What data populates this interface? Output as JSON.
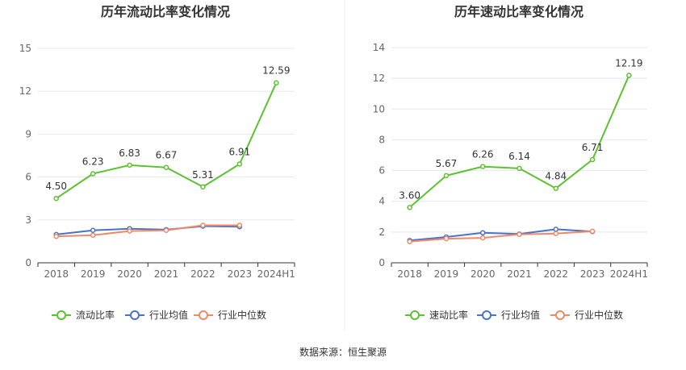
{
  "source": "数据来源：恒生聚源",
  "colors": {
    "company": "#5cc22f",
    "industry_avg": "#4a72c9",
    "industry_median": "#ee8a66",
    "grid": "#e5e8f0",
    "axis": "#333333",
    "tick_text": "#666666",
    "title_text": "#333333",
    "divider": "#eeeeee"
  },
  "chart_data": [
    {
      "type": "line",
      "title": "历年流动比率变化情况",
      "categories": [
        "2018",
        "2019",
        "2020",
        "2021",
        "2022",
        "2023",
        "2024H1"
      ],
      "ylim": [
        0,
        15
      ],
      "yticks": [
        "0",
        "3",
        "6",
        "9",
        "12",
        "15"
      ],
      "grid": true,
      "legend_position": "bottom",
      "series": [
        {
          "name": "流动比率",
          "values": [
            4.5,
            6.23,
            6.83,
            6.67,
            5.31,
            6.91,
            12.59
          ],
          "labels": [
            "4.50",
            "6.23",
            "6.83",
            "6.67",
            "5.31",
            "6.91",
            "12.59"
          ]
        },
        {
          "name": "行业均值",
          "values": [
            1.98,
            2.27,
            2.38,
            2.32,
            2.56,
            2.52,
            null
          ]
        },
        {
          "name": "行业中位数",
          "values": [
            1.85,
            1.93,
            2.22,
            2.27,
            2.62,
            2.62,
            null
          ]
        }
      ]
    },
    {
      "type": "line",
      "title": "历年速动比率变化情况",
      "categories": [
        "2018",
        "2019",
        "2020",
        "2021",
        "2022",
        "2023",
        "2024H1"
      ],
      "ylim": [
        0,
        14
      ],
      "yticks": [
        "0",
        "2",
        "4",
        "6",
        "8",
        "10",
        "12",
        "14"
      ],
      "grid": true,
      "legend_position": "bottom",
      "series": [
        {
          "name": "速动比率",
          "values": [
            3.6,
            5.67,
            6.26,
            6.14,
            4.84,
            6.71,
            12.19
          ],
          "labels": [
            "3.60",
            "5.67",
            "6.26",
            "6.14",
            "4.84",
            "6.71",
            "12.19"
          ]
        },
        {
          "name": "行业均值",
          "values": [
            1.45,
            1.68,
            1.95,
            1.87,
            2.18,
            2.03,
            null
          ]
        },
        {
          "name": "行业中位数",
          "values": [
            1.38,
            1.57,
            1.62,
            1.85,
            1.9,
            2.05,
            null
          ]
        }
      ]
    }
  ]
}
